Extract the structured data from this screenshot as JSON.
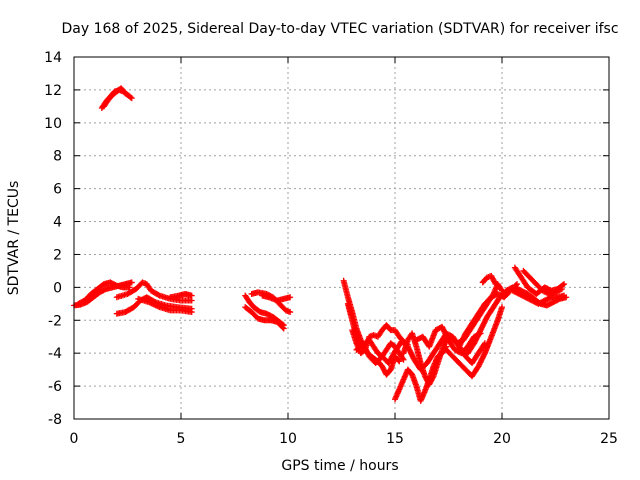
{
  "chart_data": {
    "type": "scatter",
    "title": "Day 168 of 2025, Sidereal Day-to-day VTEC variation (SDTVAR) for receiver ifsc",
    "xlabel": "GPS time / hours",
    "ylabel": "SDTVAR / TECUs",
    "xlim": [
      0,
      25
    ],
    "ylim": [
      -8,
      14
    ],
    "xticks": [
      0,
      5,
      10,
      15,
      20,
      25
    ],
    "yticks": [
      -8,
      -6,
      -4,
      -2,
      0,
      2,
      4,
      6,
      8,
      10,
      12,
      14
    ],
    "grid": true,
    "marker": "plus",
    "series": [
      {
        "name": "SDTVAR",
        "color": "#ff0000",
        "tracks": [
          [
            [
              0.0,
              -1.1
            ],
            [
              0.3,
              -1.05
            ],
            [
              0.6,
              -0.9
            ],
            [
              0.9,
              -0.6
            ],
            [
              1.2,
              -0.3
            ],
            [
              1.5,
              -0.1
            ],
            [
              1.8,
              0.0
            ],
            [
              2.1,
              0.1
            ],
            [
              2.4,
              0.2
            ],
            [
              2.7,
              0.3
            ]
          ],
          [
            [
              0.2,
              -1.0
            ],
            [
              0.5,
              -0.8
            ],
            [
              0.8,
              -0.4
            ],
            [
              1.1,
              -0.1
            ],
            [
              1.4,
              0.2
            ],
            [
              1.7,
              0.3
            ],
            [
              2.0,
              0.1
            ],
            [
              2.3,
              0.0
            ],
            [
              2.6,
              0.0
            ]
          ],
          [
            [
              2.0,
              -0.6
            ],
            [
              2.5,
              -0.4
            ],
            [
              2.9,
              -0.1
            ],
            [
              3.2,
              0.3
            ],
            [
              3.4,
              0.2
            ],
            [
              3.6,
              -0.2
            ],
            [
              4.0,
              -0.5
            ],
            [
              4.5,
              -0.7
            ],
            [
              5.0,
              -0.8
            ],
            [
              5.5,
              -0.8
            ]
          ],
          [
            [
              2.0,
              -1.6
            ],
            [
              2.4,
              -1.5
            ],
            [
              2.8,
              -1.2
            ],
            [
              3.1,
              -0.8
            ],
            [
              3.4,
              -0.6
            ],
            [
              3.8,
              -0.9
            ],
            [
              4.3,
              -1.1
            ],
            [
              4.8,
              -1.2
            ],
            [
              5.5,
              -1.3
            ]
          ],
          [
            [
              3.0,
              -0.7
            ],
            [
              3.5,
              -0.9
            ],
            [
              4.0,
              -1.2
            ],
            [
              4.5,
              -1.4
            ],
            [
              5.0,
              -1.4
            ],
            [
              5.5,
              -1.5
            ]
          ],
          [
            [
              4.5,
              -0.6
            ],
            [
              4.9,
              -0.5
            ],
            [
              5.2,
              -0.4
            ],
            [
              5.5,
              -0.5
            ]
          ],
          [
            [
              1.3,
              10.9
            ],
            [
              1.5,
              11.3
            ],
            [
              1.7,
              11.6
            ],
            [
              1.9,
              11.9
            ],
            [
              2.1,
              12.0
            ],
            [
              2.3,
              11.9
            ],
            [
              2.5,
              11.7
            ],
            [
              2.7,
              11.5
            ]
          ],
          [
            [
              1.4,
              11.0
            ],
            [
              1.6,
              11.4
            ],
            [
              1.8,
              11.7
            ],
            [
              2.0,
              11.9
            ],
            [
              2.2,
              12.1
            ],
            [
              2.4,
              11.8
            ],
            [
              2.6,
              11.6
            ]
          ],
          [
            [
              8.0,
              -0.5
            ],
            [
              8.2,
              -0.9
            ],
            [
              8.4,
              -1.2
            ],
            [
              8.7,
              -1.5
            ],
            [
              9.0,
              -1.6
            ],
            [
              9.3,
              -1.8
            ],
            [
              9.6,
              -2.1
            ],
            [
              9.8,
              -2.3
            ]
          ],
          [
            [
              8.0,
              -1.2
            ],
            [
              8.3,
              -1.5
            ],
            [
              8.6,
              -1.9
            ],
            [
              8.9,
              -2.0
            ],
            [
              9.2,
              -2.0
            ],
            [
              9.5,
              -2.1
            ],
            [
              9.8,
              -2.5
            ]
          ],
          [
            [
              8.3,
              -0.4
            ],
            [
              8.6,
              -0.3
            ],
            [
              9.0,
              -0.4
            ],
            [
              9.3,
              -0.6
            ],
            [
              9.6,
              -1.0
            ],
            [
              9.9,
              -1.4
            ],
            [
              10.1,
              -1.5
            ]
          ],
          [
            [
              8.8,
              -0.5
            ],
            [
              9.1,
              -0.6
            ],
            [
              9.5,
              -0.8
            ],
            [
              9.8,
              -0.7
            ],
            [
              10.1,
              -0.6
            ]
          ],
          [
            [
              12.6,
              0.4
            ],
            [
              12.8,
              -0.6
            ],
            [
              13.0,
              -1.5
            ],
            [
              13.2,
              -2.5
            ],
            [
              13.4,
              -3.2
            ],
            [
              13.6,
              -3.8
            ],
            [
              13.8,
              -4.1
            ],
            [
              14.0,
              -4.3
            ],
            [
              14.2,
              -4.5
            ],
            [
              14.4,
              -4.8
            ],
            [
              14.6,
              -5.3
            ],
            [
              14.8,
              -5.0
            ],
            [
              15.0,
              -4.2
            ],
            [
              15.2,
              -4.5
            ]
          ],
          [
            [
              12.8,
              -1.0
            ],
            [
              13.0,
              -2.0
            ],
            [
              13.2,
              -3.0
            ],
            [
              13.4,
              -3.6
            ],
            [
              13.6,
              -3.4
            ],
            [
              13.8,
              -3.2
            ],
            [
              14.0,
              -3.6
            ],
            [
              14.2,
              -4.0
            ],
            [
              14.4,
              -4.2
            ],
            [
              14.6,
              -3.8
            ],
            [
              14.8,
              -3.4
            ],
            [
              15.0,
              -3.6
            ],
            [
              15.2,
              -4.0
            ],
            [
              15.4,
              -4.4
            ]
          ],
          [
            [
              13.0,
              -2.6
            ],
            [
              13.2,
              -3.4
            ],
            [
              13.4,
              -4.0
            ],
            [
              13.6,
              -3.8
            ],
            [
              13.8,
              -3.0
            ],
            [
              14.0,
              -2.9
            ],
            [
              14.2,
              -3.0
            ],
            [
              14.4,
              -2.6
            ],
            [
              14.6,
              -2.3
            ],
            [
              14.8,
              -2.6
            ],
            [
              15.0,
              -2.6
            ],
            [
              15.2,
              -3.0
            ],
            [
              15.4,
              -3.3
            ]
          ],
          [
            [
              13.2,
              -3.8
            ],
            [
              13.5,
              -3.4
            ],
            [
              13.8,
              -4.2
            ],
            [
              14.1,
              -4.6
            ],
            [
              14.4,
              -4.2
            ],
            [
              14.7,
              -4.6
            ],
            [
              15.0,
              -3.9
            ],
            [
              15.3,
              -3.3
            ],
            [
              15.6,
              -3.5
            ]
          ],
          [
            [
              15.0,
              -6.8
            ],
            [
              15.2,
              -6.2
            ],
            [
              15.4,
              -5.6
            ],
            [
              15.6,
              -5.0
            ],
            [
              15.8,
              -5.3
            ],
            [
              16.0,
              -6.0
            ],
            [
              16.2,
              -6.9
            ],
            [
              16.4,
              -6.3
            ],
            [
              16.6,
              -5.6
            ],
            [
              16.8,
              -4.8
            ],
            [
              17.0,
              -4.2
            ],
            [
              17.2,
              -4.0
            ],
            [
              17.4,
              -3.6
            ]
          ],
          [
            [
              15.4,
              -4.0
            ],
            [
              15.6,
              -3.2
            ],
            [
              15.8,
              -2.8
            ],
            [
              16.0,
              -3.6
            ],
            [
              16.2,
              -4.6
            ],
            [
              16.4,
              -5.4
            ],
            [
              16.6,
              -5.9
            ],
            [
              16.8,
              -5.4
            ],
            [
              17.0,
              -4.6
            ],
            [
              17.2,
              -3.8
            ],
            [
              17.4,
              -3.2
            ]
          ],
          [
            [
              15.6,
              -3.6
            ],
            [
              15.9,
              -4.4
            ],
            [
              16.2,
              -5.0
            ],
            [
              16.5,
              -4.6
            ],
            [
              16.8,
              -4.0
            ],
            [
              17.1,
              -3.4
            ],
            [
              17.4,
              -2.8
            ],
            [
              17.7,
              -3.0
            ],
            [
              18.0,
              -3.6
            ],
            [
              18.3,
              -4.2
            ],
            [
              18.6,
              -4.6
            ],
            [
              18.9,
              -4.0
            ],
            [
              19.2,
              -3.4
            ]
          ],
          [
            [
              16.0,
              -3.2
            ],
            [
              16.3,
              -3.0
            ],
            [
              16.6,
              -3.6
            ],
            [
              16.9,
              -2.6
            ],
            [
              17.2,
              -2.4
            ],
            [
              17.5,
              -3.2
            ],
            [
              17.8,
              -3.8
            ],
            [
              18.1,
              -4.0
            ],
            [
              18.4,
              -3.6
            ],
            [
              18.7,
              -3.0
            ],
            [
              19.0,
              -2.8
            ]
          ],
          [
            [
              17.4,
              -3.8
            ],
            [
              17.7,
              -4.2
            ],
            [
              18.0,
              -4.6
            ],
            [
              18.3,
              -5.0
            ],
            [
              18.6,
              -5.4
            ],
            [
              18.9,
              -4.8
            ],
            [
              19.2,
              -4.0
            ],
            [
              19.5,
              -3.0
            ],
            [
              19.8,
              -2.0
            ],
            [
              20.0,
              -1.2
            ]
          ],
          [
            [
              17.6,
              -3.0
            ],
            [
              17.9,
              -3.4
            ],
            [
              18.2,
              -3.2
            ],
            [
              18.5,
              -2.6
            ],
            [
              18.8,
              -2.0
            ],
            [
              19.1,
              -1.4
            ],
            [
              19.4,
              -0.8
            ],
            [
              19.6,
              -0.4
            ],
            [
              19.8,
              0.2
            ],
            [
              20.0,
              -0.2
            ]
          ],
          [
            [
              18.0,
              -3.6
            ],
            [
              18.3,
              -2.8
            ],
            [
              18.6,
              -2.2
            ],
            [
              18.9,
              -1.6
            ],
            [
              19.2,
              -1.0
            ],
            [
              19.5,
              -0.6
            ],
            [
              19.8,
              -0.4
            ],
            [
              20.1,
              -0.6
            ],
            [
              20.4,
              -0.2
            ],
            [
              20.7,
              0.2
            ]
          ],
          [
            [
              18.4,
              -4.0
            ],
            [
              18.7,
              -3.4
            ],
            [
              19.0,
              -2.6
            ],
            [
              19.3,
              -1.8
            ],
            [
              19.6,
              -1.2
            ],
            [
              19.9,
              -0.6
            ],
            [
              20.2,
              -0.2
            ],
            [
              20.5,
              0.0
            ]
          ],
          [
            [
              19.1,
              0.3
            ],
            [
              19.3,
              0.6
            ],
            [
              19.5,
              0.7
            ],
            [
              19.7,
              0.2
            ]
          ],
          [
            [
              20.6,
              1.2
            ],
            [
              20.8,
              0.8
            ],
            [
              21.0,
              0.4
            ],
            [
              21.2,
              0.0
            ],
            [
              21.4,
              -0.2
            ],
            [
              21.6,
              -0.4
            ],
            [
              21.8,
              -0.2
            ],
            [
              22.0,
              0.0
            ],
            [
              22.3,
              -0.2
            ],
            [
              22.6,
              -0.1
            ],
            [
              22.9,
              0.2
            ]
          ],
          [
            [
              20.5,
              -0.2
            ],
            [
              20.8,
              -0.4
            ],
            [
              21.1,
              -0.6
            ],
            [
              21.4,
              -0.8
            ],
            [
              21.7,
              -1.0
            ],
            [
              22.0,
              -0.8
            ],
            [
              22.3,
              -0.6
            ],
            [
              22.6,
              -0.6
            ],
            [
              22.9,
              -0.5
            ]
          ],
          [
            [
              20.6,
              0.0
            ],
            [
              20.9,
              -0.2
            ],
            [
              21.2,
              -0.4
            ],
            [
              21.5,
              -0.7
            ],
            [
              21.8,
              -1.0
            ],
            [
              22.1,
              -1.1
            ],
            [
              22.4,
              -0.9
            ],
            [
              22.7,
              -0.7
            ],
            [
              23.0,
              -0.6
            ]
          ],
          [
            [
              21.0,
              1.0
            ],
            [
              21.3,
              0.6
            ],
            [
              21.6,
              0.2
            ],
            [
              21.9,
              -0.2
            ],
            [
              22.2,
              -0.4
            ],
            [
              22.5,
              -0.3
            ],
            [
              22.8,
              -0.1
            ]
          ]
        ]
      }
    ]
  }
}
